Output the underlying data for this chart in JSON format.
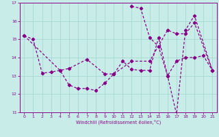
{
  "xlabel": "Windchill (Refroidissement éolien,°C)",
  "background_color": "#c8ede8",
  "line_color": "#880088",
  "xlim": [
    -0.5,
    21.5
  ],
  "ylim": [
    11,
    17
  ],
  "yticks": [
    11,
    12,
    13,
    14,
    15,
    16,
    17
  ],
  "xticks": [
    0,
    1,
    2,
    3,
    4,
    5,
    6,
    7,
    8,
    9,
    10,
    11,
    12,
    13,
    14,
    15,
    16,
    17,
    18,
    19,
    20,
    21
  ],
  "series1": {
    "x": [
      0,
      1,
      2,
      3,
      4,
      5,
      6,
      7,
      8,
      9,
      10,
      11,
      12,
      13,
      14,
      15,
      16,
      17,
      18,
      19,
      20,
      21
    ],
    "y": [
      15.2,
      15.0,
      13.15,
      13.2,
      13.3,
      12.5,
      12.3,
      12.3,
      12.2,
      12.6,
      13.1,
      13.8,
      13.35,
      13.3,
      13.3,
      15.1,
      13.0,
      13.8,
      14.0,
      14.0,
      14.1,
      13.3
    ]
  },
  "series2": {
    "x": [
      12,
      13,
      14,
      15,
      16,
      17,
      18,
      19,
      21
    ],
    "y": [
      16.8,
      16.7,
      15.1,
      14.6,
      13.0,
      10.9,
      15.5,
      16.3,
      13.3
    ]
  },
  "series3": {
    "x": [
      0,
      4,
      5,
      7,
      9,
      10,
      12,
      14,
      16,
      17,
      18,
      19,
      21
    ],
    "y": [
      15.2,
      13.3,
      13.4,
      13.9,
      13.1,
      13.1,
      13.8,
      13.8,
      15.5,
      15.3,
      15.3,
      15.9,
      13.3
    ]
  }
}
